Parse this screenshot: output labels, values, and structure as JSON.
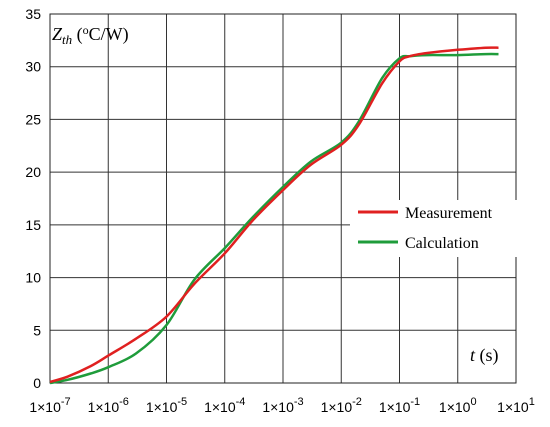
{
  "chart_data": {
    "type": "line",
    "ylabel_symbol": "Z",
    "ylabel_subscript": "th",
    "ylabel_unit_open": " (",
    "ylabel_unit_sup": "o",
    "ylabel_unit_close": "C/W)",
    "xlabel_symbol": "t",
    "xlabel_unit": " (s)",
    "x_scale": "log",
    "xlim": [
      1e-07,
      10
    ],
    "ylim": [
      0,
      35
    ],
    "grid": true,
    "legend_position": "center-right",
    "x_ticks": [
      {
        "value": 1e-07,
        "mant": "1×10",
        "exp": "-7"
      },
      {
        "value": 1e-06,
        "mant": "1×10",
        "exp": "-6"
      },
      {
        "value": 1e-05,
        "mant": "1×10",
        "exp": "-5"
      },
      {
        "value": 0.0001,
        "mant": "1×10",
        "exp": "-4"
      },
      {
        "value": 0.001,
        "mant": "1×10",
        "exp": "-3"
      },
      {
        "value": 0.01,
        "mant": "1×10",
        "exp": "-2"
      },
      {
        "value": 0.1,
        "mant": "1×10",
        "exp": "-1"
      },
      {
        "value": 1,
        "mant": "1×10",
        "exp": "0"
      },
      {
        "value": 10,
        "mant": "1×10",
        "exp": "1"
      }
    ],
    "y_ticks": [
      {
        "value": 0,
        "label": "0"
      },
      {
        "value": 5,
        "label": "5"
      },
      {
        "value": 10,
        "label": "10"
      },
      {
        "value": 15,
        "label": "15"
      },
      {
        "value": 20,
        "label": "20"
      },
      {
        "value": 25,
        "label": "25"
      },
      {
        "value": 30,
        "label": "30"
      },
      {
        "value": 35,
        "label": "35"
      }
    ],
    "series": [
      {
        "name": "Measurement",
        "color": "#e02020",
        "x": [
          1e-07,
          2e-07,
          5e-07,
          1e-06,
          3e-06,
          1e-05,
          3e-05,
          0.0001,
          0.0003,
          0.001,
          0.003,
          0.01,
          0.02,
          0.05,
          0.1,
          0.15,
          0.3,
          1,
          3,
          5
        ],
        "y": [
          0.1,
          0.6,
          1.6,
          2.6,
          4.2,
          6.3,
          9.4,
          12.3,
          15.4,
          18.3,
          20.7,
          22.6,
          24.5,
          28.4,
          30.5,
          31.0,
          31.3,
          31.6,
          31.8,
          31.8
        ]
      },
      {
        "name": "Calculation",
        "color": "#1f9c3b",
        "x": [
          1e-07,
          2e-07,
          5e-07,
          1e-06,
          3e-06,
          1e-05,
          3e-05,
          0.0001,
          0.0003,
          0.001,
          0.003,
          0.01,
          0.02,
          0.05,
          0.1,
          0.15,
          0.3,
          1,
          3,
          5
        ],
        "y": [
          0.0,
          0.3,
          0.9,
          1.5,
          2.8,
          5.5,
          9.8,
          12.8,
          15.7,
          18.6,
          21.0,
          22.8,
          24.8,
          28.9,
          30.8,
          31.0,
          31.1,
          31.1,
          31.2,
          31.2
        ]
      }
    ]
  }
}
